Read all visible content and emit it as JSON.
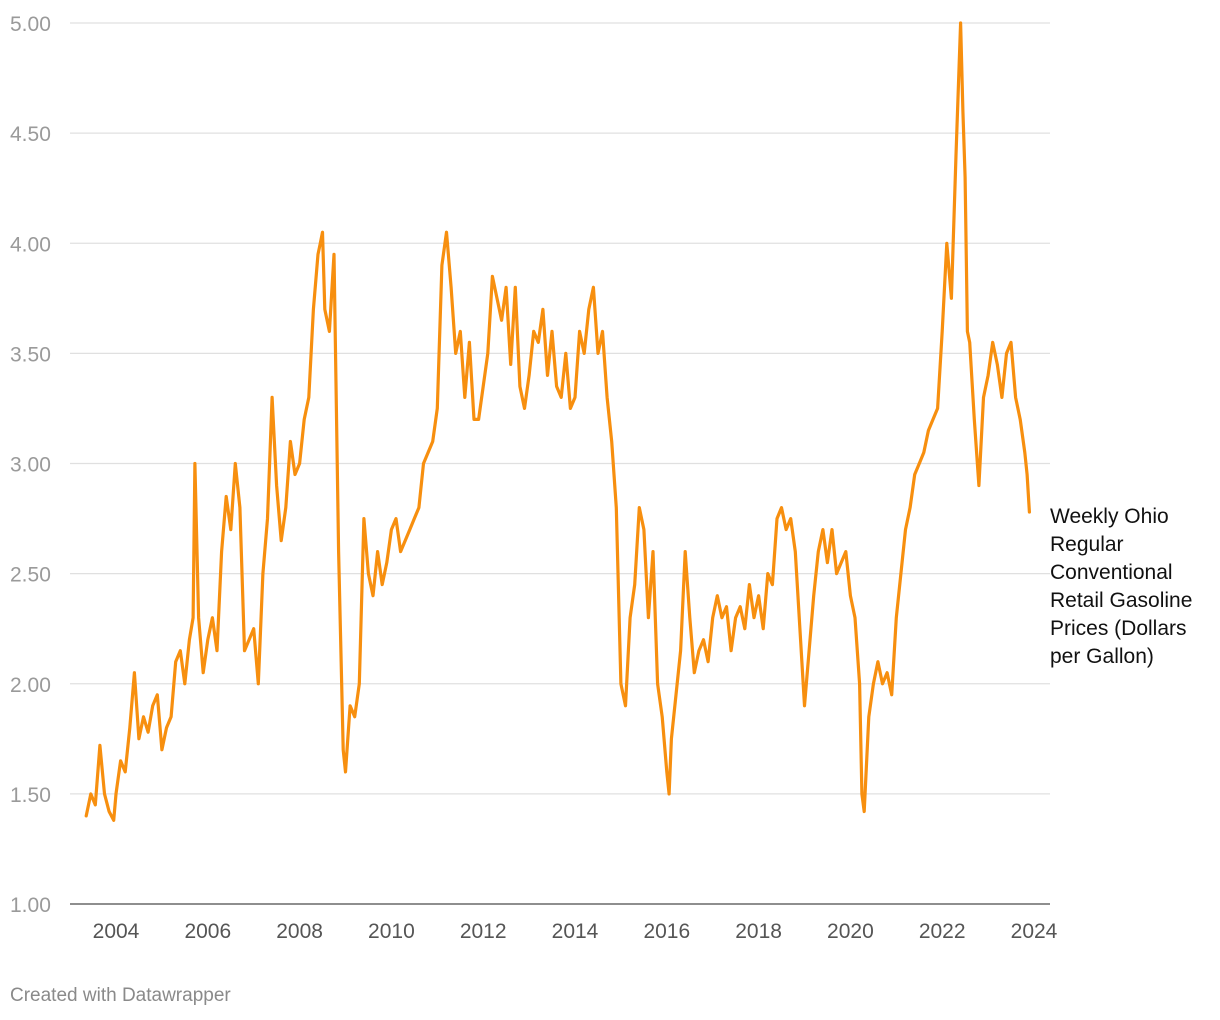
{
  "chart_data": {
    "type": "line",
    "title": "",
    "xlabel": "",
    "ylabel": "",
    "xlim": [
      2003.2,
      2024.0
    ],
    "ylim": [
      1.0,
      5.0
    ],
    "y_ticks": [
      "1.00",
      "1.50",
      "2.00",
      "2.50",
      "3.00",
      "3.50",
      "4.00",
      "4.50",
      "5.00"
    ],
    "x_ticks": [
      "2004",
      "2006",
      "2008",
      "2010",
      "2012",
      "2014",
      "2016",
      "2018",
      "2020",
      "2022",
      "2024"
    ],
    "series": [
      {
        "name": "Weekly Ohio Regular Conventional Retail Gasoline Prices (Dollars per Gallon)",
        "color": "#f78f0f",
        "x": [
          2003.35,
          2003.45,
          2003.55,
          2003.65,
          2003.75,
          2003.85,
          2003.95,
          2004.0,
          2004.1,
          2004.2,
          2004.3,
          2004.4,
          2004.5,
          2004.6,
          2004.7,
          2004.8,
          2004.9,
          2005.0,
          2005.1,
          2005.2,
          2005.3,
          2005.4,
          2005.5,
          2005.6,
          2005.68,
          2005.72,
          2005.8,
          2005.9,
          2006.0,
          2006.1,
          2006.2,
          2006.3,
          2006.4,
          2006.5,
          2006.6,
          2006.7,
          2006.8,
          2006.9,
          2007.0,
          2007.1,
          2007.2,
          2007.3,
          2007.4,
          2007.5,
          2007.6,
          2007.7,
          2007.8,
          2007.9,
          2008.0,
          2008.1,
          2008.2,
          2008.3,
          2008.4,
          2008.45,
          2008.5,
          2008.55,
          2008.65,
          2008.75,
          2008.85,
          2008.95,
          2009.0,
          2009.1,
          2009.2,
          2009.3,
          2009.4,
          2009.5,
          2009.6,
          2009.7,
          2009.8,
          2009.9,
          2010.0,
          2010.1,
          2010.2,
          2010.3,
          2010.4,
          2010.5,
          2010.6,
          2010.7,
          2010.8,
          2010.9,
          2011.0,
          2011.1,
          2011.2,
          2011.3,
          2011.4,
          2011.5,
          2011.6,
          2011.7,
          2011.8,
          2011.9,
          2012.0,
          2012.1,
          2012.2,
          2012.3,
          2012.4,
          2012.5,
          2012.6,
          2012.7,
          2012.8,
          2012.9,
          2013.0,
          2013.1,
          2013.2,
          2013.3,
          2013.4,
          2013.5,
          2013.6,
          2013.7,
          2013.8,
          2013.9,
          2014.0,
          2014.1,
          2014.2,
          2014.3,
          2014.4,
          2014.5,
          2014.6,
          2014.7,
          2014.8,
          2014.9,
          2015.0,
          2015.1,
          2015.2,
          2015.3,
          2015.4,
          2015.5,
          2015.6,
          2015.7,
          2015.8,
          2015.9,
          2016.0,
          2016.05,
          2016.1,
          2016.2,
          2016.3,
          2016.4,
          2016.5,
          2016.6,
          2016.7,
          2016.8,
          2016.9,
          2017.0,
          2017.1,
          2017.2,
          2017.3,
          2017.4,
          2017.5,
          2017.6,
          2017.7,
          2017.8,
          2017.9,
          2018.0,
          2018.1,
          2018.2,
          2018.3,
          2018.4,
          2018.5,
          2018.6,
          2018.7,
          2018.8,
          2018.9,
          2019.0,
          2019.1,
          2019.2,
          2019.3,
          2019.4,
          2019.5,
          2019.6,
          2019.7,
          2019.8,
          2019.9,
          2020.0,
          2020.1,
          2020.2,
          2020.25,
          2020.3,
          2020.4,
          2020.5,
          2020.6,
          2020.7,
          2020.8,
          2020.9,
          2021.0,
          2021.1,
          2021.2,
          2021.3,
          2021.4,
          2021.5,
          2021.6,
          2021.7,
          2021.8,
          2021.9,
          2022.0,
          2022.1,
          2022.2,
          2022.3,
          2022.4,
          2022.45,
          2022.5,
          2022.55,
          2022.6,
          2022.7,
          2022.8,
          2022.9,
          2023.0,
          2023.1,
          2023.2,
          2023.3,
          2023.4,
          2023.5,
          2023.6,
          2023.7,
          2023.8,
          2023.85,
          2023.9
        ],
        "values": [
          1.4,
          1.5,
          1.45,
          1.72,
          1.5,
          1.42,
          1.38,
          1.5,
          1.65,
          1.6,
          1.8,
          2.05,
          1.75,
          1.85,
          1.78,
          1.9,
          1.95,
          1.7,
          1.8,
          1.85,
          2.1,
          2.15,
          2.0,
          2.2,
          2.3,
          3.0,
          2.3,
          2.05,
          2.2,
          2.3,
          2.15,
          2.6,
          2.85,
          2.7,
          3.0,
          2.8,
          2.15,
          2.2,
          2.25,
          2.0,
          2.5,
          2.75,
          3.3,
          2.9,
          2.65,
          2.8,
          3.1,
          2.95,
          3.0,
          3.2,
          3.3,
          3.7,
          3.95,
          4.0,
          4.05,
          3.7,
          3.6,
          3.95,
          2.6,
          1.7,
          1.6,
          1.9,
          1.85,
          2.0,
          2.75,
          2.5,
          2.4,
          2.6,
          2.45,
          2.55,
          2.7,
          2.75,
          2.6,
          2.65,
          2.7,
          2.75,
          2.8,
          3.0,
          3.05,
          3.1,
          3.25,
          3.9,
          4.05,
          3.8,
          3.5,
          3.6,
          3.3,
          3.55,
          3.2,
          3.2,
          3.35,
          3.5,
          3.85,
          3.75,
          3.65,
          3.8,
          3.45,
          3.8,
          3.35,
          3.25,
          3.4,
          3.6,
          3.55,
          3.7,
          3.4,
          3.6,
          3.35,
          3.3,
          3.5,
          3.25,
          3.3,
          3.6,
          3.5,
          3.7,
          3.8,
          3.5,
          3.6,
          3.3,
          3.1,
          2.8,
          2.0,
          1.9,
          2.3,
          2.45,
          2.8,
          2.7,
          2.3,
          2.6,
          2.0,
          1.85,
          1.6,
          1.5,
          1.75,
          1.95,
          2.15,
          2.6,
          2.3,
          2.05,
          2.15,
          2.2,
          2.1,
          2.3,
          2.4,
          2.3,
          2.35,
          2.15,
          2.3,
          2.35,
          2.25,
          2.45,
          2.3,
          2.4,
          2.25,
          2.5,
          2.45,
          2.75,
          2.8,
          2.7,
          2.75,
          2.6,
          2.25,
          1.9,
          2.15,
          2.4,
          2.6,
          2.7,
          2.55,
          2.7,
          2.5,
          2.55,
          2.6,
          2.4,
          2.3,
          2.0,
          1.5,
          1.42,
          1.85,
          2.0,
          2.1,
          2.0,
          2.05,
          1.95,
          2.3,
          2.5,
          2.7,
          2.8,
          2.95,
          3.0,
          3.05,
          3.15,
          3.2,
          3.25,
          3.6,
          4.0,
          3.75,
          4.4,
          5.0,
          4.6,
          4.3,
          3.6,
          3.55,
          3.2,
          2.9,
          3.3,
          3.4,
          3.55,
          3.45,
          3.3,
          3.5,
          3.55,
          3.3,
          3.2,
          3.05,
          2.95,
          2.78
        ]
      }
    ]
  },
  "legend": {
    "series_label": "Weekly Ohio Regular Conventional Retail Gasoline Prices (Dollars per Gallon)"
  },
  "footer": {
    "credit": "Created with Datawrapper"
  }
}
